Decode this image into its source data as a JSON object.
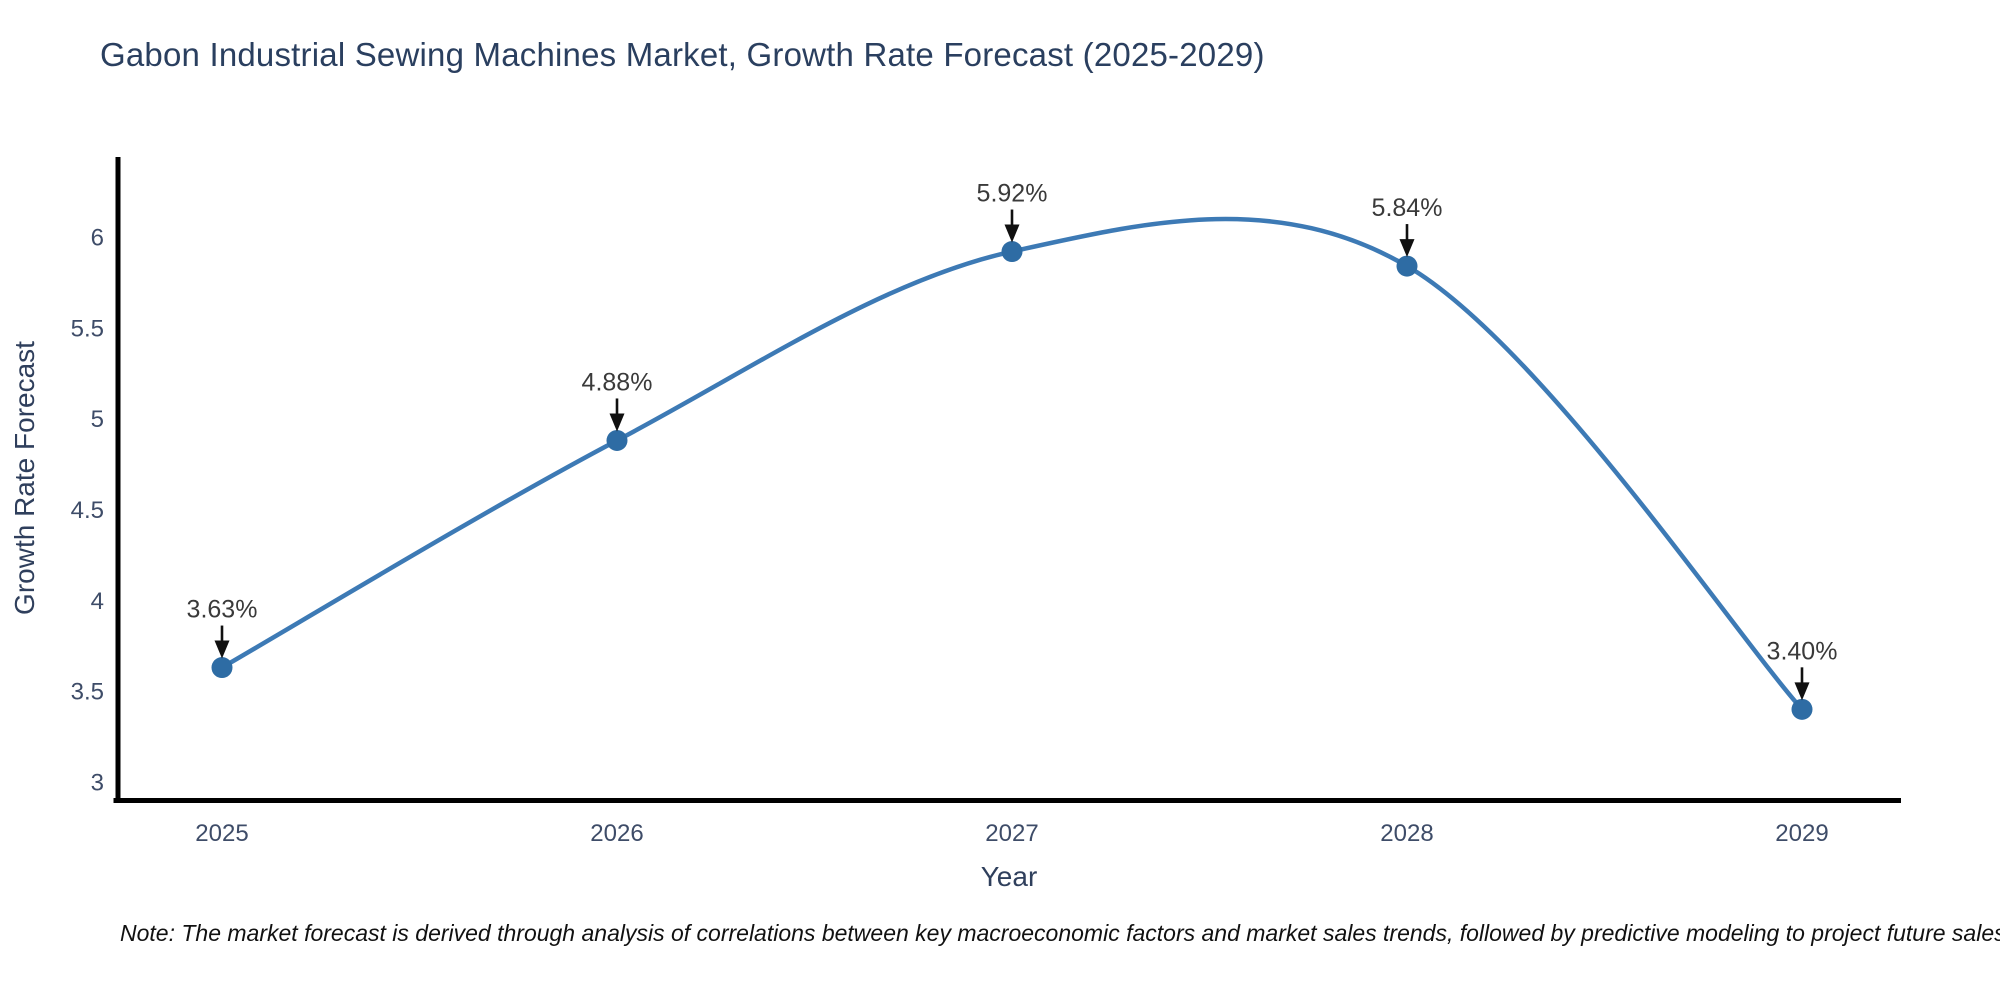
{
  "title": "Gabon Industrial Sewing Machines Market, Growth Rate Forecast (2025-2029)",
  "note": "Note: The market forecast is derived through analysis of correlations between key macroeconomic factors and market sales trends, followed by predictive modeling to project future sales",
  "chart_data": {
    "type": "line",
    "x": [
      2025,
      2026,
      2027,
      2028,
      2029
    ],
    "values": [
      3.63,
      4.88,
      5.92,
      5.84,
      3.4
    ],
    "point_labels": [
      "3.63%",
      "4.88%",
      "5.92%",
      "5.84%",
      "3.40%"
    ],
    "title": "Gabon Industrial Sewing Machines Market, Growth Rate Forecast (2025-2029)",
    "xlabel": "Year",
    "ylabel": "Growth Rate Forecast",
    "xtick_labels": [
      "2025",
      "2026",
      "2027",
      "2028",
      "2029"
    ],
    "yticks": [
      3,
      3.5,
      4,
      4.5,
      5,
      5.5,
      6
    ],
    "ytick_labels": [
      "3",
      "3.5",
      "4",
      "4.5",
      "5",
      "5.5",
      "6"
    ],
    "ylim": [
      2.9,
      6.43
    ],
    "grid": false,
    "legend": "none",
    "line_style": "spline-smoothed with point markers and downward annotation arrows",
    "colors": {
      "line": "#3d7ab5",
      "marker": "#2e6ca4",
      "axis": "#000000",
      "tick_text": "#3e4c68",
      "title_text": "#2a3f5f",
      "annotation": "#101010"
    }
  }
}
